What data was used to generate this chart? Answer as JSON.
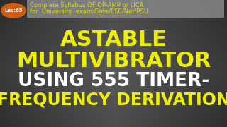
{
  "bg_color_dark": "#1a1a1a",
  "bg_color_mid": "#4a4a4a",
  "header_box_color": "#888888",
  "header_text1": "Complete Syllabus OF OP-AMP or LICA",
  "header_text2": "for  University  exam/Gate/ESE/Net/PSU",
  "header_text_color": "#dddd00",
  "lec_oval_color": "#d05a10",
  "lec_text": "Lec:65",
  "lec_text_color": "#ffffff",
  "main_line1": "ASTABLE",
  "main_line2": "MULTIVIBRATOR",
  "main_line3": "USING 555 TIMER-",
  "main_line4": "FREQUENCY DERIVATION",
  "main_color_yellow": "#eeee00",
  "main_color_white": "#ffffff",
  "main_fontsize1": 22,
  "main_fontsize2": 22,
  "main_fontsize3": 19,
  "main_fontsize4": 17,
  "sub_fontsize": 6.0
}
